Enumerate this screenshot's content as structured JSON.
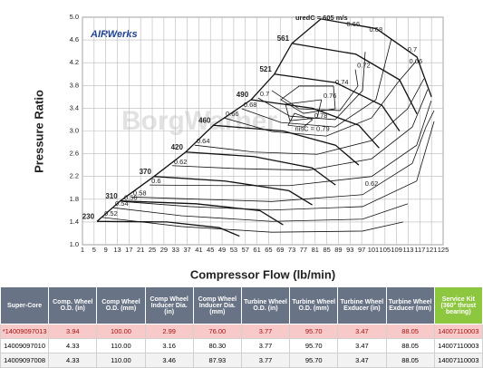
{
  "chart_data": {
    "type": "contour",
    "xlabel": "Compressor Flow (lb/min)",
    "ylabel": "Pressure Ratio",
    "logo": "AIRWerks",
    "watermark": "BorgWarner",
    "xlim": [
      1,
      125
    ],
    "xticks": [
      1,
      5,
      9,
      13,
      17,
      21,
      25,
      29,
      33,
      37,
      41,
      45,
      49,
      53,
      57,
      61,
      65,
      69,
      73,
      77,
      81,
      85,
      89,
      93,
      97,
      101,
      105,
      109,
      113,
      117,
      121,
      125
    ],
    "ylim": [
      1,
      5
    ],
    "yticks": [
      {
        "value": 1,
        "label": "1.0"
      },
      1.4,
      1.8,
      2.2,
      2.6,
      {
        "value": 3,
        "label": "3.0"
      },
      3.4,
      3.8,
      4.2,
      4.6,
      {
        "value": 5,
        "label": "5.0"
      }
    ],
    "grid": true,
    "speed_lines": [
      {
        "name": "230",
        "x": [
          6,
          30,
          48,
          55
        ],
        "y": [
          1.41,
          1.4,
          1.3,
          1.15
        ]
      },
      {
        "name": "310",
        "x": [
          14,
          40,
          62,
          70
        ],
        "y": [
          1.77,
          1.72,
          1.6,
          1.35
        ]
      },
      {
        "name": "370",
        "x": [
          25.6,
          50,
          72,
          80
        ],
        "y": [
          2.2,
          2.12,
          1.95,
          1.7
        ]
      },
      {
        "name": "420",
        "x": [
          36.5,
          60,
          80,
          88
        ],
        "y": [
          2.63,
          2.55,
          2.35,
          2.05
        ]
      },
      {
        "name": "460",
        "x": [
          46,
          70,
          88,
          96
        ],
        "y": [
          3.1,
          3.0,
          2.75,
          2.4
        ]
      },
      {
        "name": "490",
        "x": [
          59,
          80,
          96,
          103
        ],
        "y": [
          3.55,
          3.4,
          3.1,
          2.7
        ]
      },
      {
        "name": "521",
        "x": [
          67,
          88,
          104,
          110
        ],
        "y": [
          4.0,
          3.85,
          3.45,
          3.0
        ]
      },
      {
        "name": "561",
        "x": [
          73,
          95,
          110,
          116
        ],
        "y": [
          4.54,
          4.35,
          3.9,
          3.3
        ]
      },
      {
        "x": [
          83,
          102,
          116,
          121
        ],
        "y": [
          4.97,
          4.8,
          4.3,
          3.6
        ]
      }
    ],
    "efficiency_contours": [
      {
        "name": "0.52",
        "x": [
          7.9,
          35,
          66.1,
          97.3,
          111.3
        ],
        "y": [
          1.48,
          1.32,
          1.22,
          1.24,
          1.4
        ]
      },
      {
        "name": "0.54",
        "x": [
          11.6,
          35,
          66.1,
          97.3,
          112.8
        ],
        "y": [
          1.65,
          1.51,
          1.41,
          1.45,
          1.72
        ]
      },
      {
        "name": "0.56",
        "x": [
          14.7,
          38.1,
          66.1,
          97.3,
          115.9,
          121.9
        ],
        "y": [
          1.76,
          1.67,
          1.61,
          1.67,
          2.12,
          3.17
        ]
      },
      {
        "name": "0.58",
        "x": [
          17.8,
          41.2,
          66.1,
          97.3,
          114.4,
          119.1,
          121.9
        ],
        "y": [
          1.84,
          1.8,
          1.76,
          1.88,
          2.43,
          3.07,
          3.36
        ]
      },
      {
        "name": "0.6",
        "x": [
          24.1,
          47.4,
          72.3,
          100.4,
          115.9,
          120.9
        ],
        "y": [
          2.05,
          2.04,
          2.04,
          2.2,
          2.75,
          3.53
        ]
      },
      {
        "name": "0.62",
        "x": [
          31.8,
          53.6,
          78.6,
          100.4,
          114.4,
          119.7
        ],
        "y": [
          2.39,
          2.34,
          2.31,
          2.51,
          3.07,
          3.73
        ]
      },
      {
        "name": "0.64",
        "x": [
          39.6,
          59.9,
          81.7,
          100.4,
          112.8,
          118.4
        ],
        "y": [
          2.75,
          2.63,
          2.59,
          2.83,
          3.39,
          3.92
        ]
      },
      {
        "name": "0.66",
        "x": [
          49.6,
          66.1,
          84.8,
          100.4,
          109.7,
          115.6
        ],
        "y": [
          3.23,
          2.99,
          2.91,
          3.23,
          3.87,
          4.22
        ]
      },
      {
        "name": "0.68",
        "x": [
          55.8,
          69.2,
          87.9,
          101.9,
          107.2
        ],
        "y": [
          3.39,
          3.15,
          3.07,
          3.55,
          4.62
        ]
      },
      {
        "name": "0.7",
        "x": [
          61.4,
          72.3,
          87.9,
          97.3,
          98.2
        ],
        "y": [
          3.58,
          3.26,
          3.2,
          3.71,
          4.39
        ]
      },
      {
        "name": "0.72",
        "x": [
          94.8,
          95.7,
          89.5,
          75.5,
          66.1
        ],
        "y": [
          4.08,
          3.79,
          3.36,
          3.39,
          3.71
        ]
      },
      {
        "name": "0.74",
        "x": [
          87.3,
          87.9,
          77.0,
          69.2,
          75.5,
          87.3
        ],
        "y": [
          3.79,
          3.39,
          3.31,
          3.55,
          3.79,
          3.79
        ]
      },
      {
        "name": "0.76",
        "x": [
          83.2,
          81.7,
          72.3,
          70.8,
          83.2
        ],
        "y": [
          3.55,
          3.23,
          3.18,
          3.47,
          3.55
        ]
      },
      {
        "name": "0.78",
        "x": [
          80.1,
          77.0,
          71.7,
          73.9,
          80.1
        ],
        "y": [
          3.2,
          3.07,
          3.1,
          3.31,
          3.2
        ]
      }
    ],
    "annotations": [
      {
        "text": "uredC = 605 m/s",
        "x": 83.2,
        "y": 4.98
      },
      {
        "text": "nisC = 0.79",
        "x": 80,
        "y": 3.03
      },
      {
        "text": "0.66",
        "x": 94.1,
        "y": 4.87
      },
      {
        "text": "0.68",
        "x": 101.9,
        "y": 4.78
      },
      {
        "text": "0.7",
        "x": 114.4,
        "y": 4.43
      },
      {
        "text": "0.66",
        "x": 115.6,
        "y": 4.22
      },
      {
        "text": "0.62",
        "x": 100.4,
        "y": 2.07
      }
    ]
  },
  "table": {
    "headers": [
      "Super-Core",
      "Comp. Wheel O.D. (in)",
      "Comp Wheel O.D. (mm)",
      "Comp Wheel Inducer Dia. (in)",
      "Comp Wheel Inducer Dia. (mm)",
      "Turbine Wheel O.D. (in)",
      "Turbine Wheel O.D. (mm)",
      "Turbine Wheel Exducer (in)",
      "Turbine Wheel Exducer (mm)",
      "Service Kit (360° thrust bearing)"
    ],
    "rows": [
      [
        "*14009097013",
        "3.94",
        "100.00",
        "2.99",
        "76.00",
        "3.77",
        "95.70",
        "3.47",
        "88.05",
        "14007110003"
      ],
      [
        "14009097010",
        "4.33",
        "110.00",
        "3.16",
        "80.30",
        "3.77",
        "95.70",
        "3.47",
        "88.05",
        "14007110003"
      ],
      [
        "14009097008",
        "4.33",
        "110.00",
        "3.46",
        "87.93",
        "3.77",
        "95.70",
        "3.47",
        "88.05",
        "14007110003"
      ]
    ]
  }
}
